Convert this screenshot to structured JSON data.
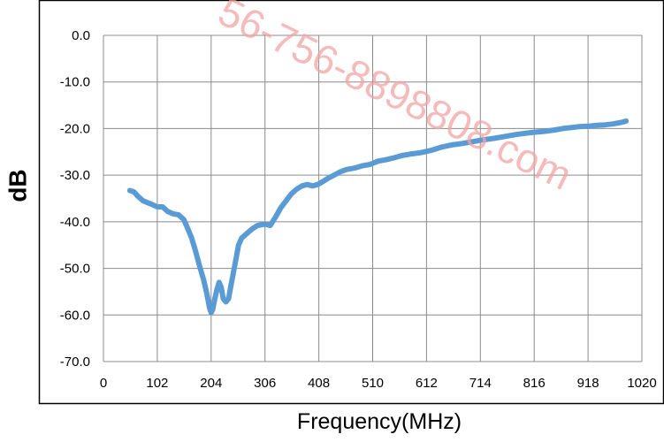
{
  "watermark": "56-756-8898808.com",
  "chart_data": {
    "type": "line",
    "title": "",
    "xlabel": "Frequency(MHz)",
    "ylabel": "dB",
    "xlim": [
      0,
      1020
    ],
    "ylim": [
      -70,
      0
    ],
    "x_ticks": [
      "0",
      "102",
      "204",
      "306",
      "408",
      "510",
      "612",
      "714",
      "816",
      "918",
      "1020"
    ],
    "y_ticks": [
      "0.0",
      "-10.0",
      "-20.0",
      "-30.0",
      "-40.0",
      "-50.0",
      "-60.0",
      "-70.0"
    ],
    "grid": true,
    "legend": "none",
    "series": [
      {
        "color": "#5b9bd5",
        "points": [
          [
            50,
            -33.3
          ],
          [
            58,
            -33.6
          ],
          [
            65,
            -34.5
          ],
          [
            75,
            -35.5
          ],
          [
            90,
            -36.2
          ],
          [
            102,
            -36.8
          ],
          [
            112,
            -36.8
          ],
          [
            122,
            -37.8
          ],
          [
            132,
            -38.3
          ],
          [
            142,
            -38.5
          ],
          [
            152,
            -39.5
          ],
          [
            160,
            -41.5
          ],
          [
            167,
            -43.5
          ],
          [
            175,
            -46.5
          ],
          [
            182,
            -49.5
          ],
          [
            190,
            -52.5
          ],
          [
            196,
            -55.5
          ],
          [
            201,
            -58.5
          ],
          [
            204,
            -59.5
          ],
          [
            207,
            -58.8
          ],
          [
            211,
            -56.5
          ],
          [
            215,
            -54.5
          ],
          [
            219,
            -53.0
          ],
          [
            223,
            -54.0
          ],
          [
            227,
            -56.5
          ],
          [
            232,
            -57.2
          ],
          [
            237,
            -56.5
          ],
          [
            241,
            -54.0
          ],
          [
            246,
            -51.0
          ],
          [
            251,
            -48.0
          ],
          [
            256,
            -45.0
          ],
          [
            262,
            -43.5
          ],
          [
            272,
            -42.5
          ],
          [
            282,
            -41.5
          ],
          [
            292,
            -40.8
          ],
          [
            306,
            -40.5
          ],
          [
            316,
            -40.8
          ],
          [
            326,
            -39.0
          ],
          [
            336,
            -37.0
          ],
          [
            346,
            -35.5
          ],
          [
            356,
            -34.0
          ],
          [
            366,
            -33.0
          ],
          [
            376,
            -32.3
          ],
          [
            386,
            -32.0
          ],
          [
            396,
            -32.3
          ],
          [
            406,
            -32.0
          ],
          [
            414,
            -31.5
          ],
          [
            425,
            -30.7
          ],
          [
            437,
            -30.0
          ],
          [
            448,
            -29.3
          ],
          [
            460,
            -28.8
          ],
          [
            475,
            -28.5
          ],
          [
            490,
            -28.0
          ],
          [
            505,
            -27.7
          ],
          [
            520,
            -27.0
          ],
          [
            535,
            -26.7
          ],
          [
            550,
            -26.3
          ],
          [
            565,
            -25.8
          ],
          [
            580,
            -25.5
          ],
          [
            600,
            -25.2
          ],
          [
            620,
            -24.7
          ],
          [
            640,
            -24.0
          ],
          [
            660,
            -23.5
          ],
          [
            680,
            -23.2
          ],
          [
            700,
            -22.8
          ],
          [
            720,
            -22.4
          ],
          [
            740,
            -22.1
          ],
          [
            760,
            -21.7
          ],
          [
            780,
            -21.3
          ],
          [
            800,
            -21.0
          ],
          [
            816,
            -20.8
          ],
          [
            835,
            -20.6
          ],
          [
            855,
            -20.3
          ],
          [
            870,
            -20.0
          ],
          [
            885,
            -19.8
          ],
          [
            900,
            -19.6
          ],
          [
            918,
            -19.5
          ],
          [
            935,
            -19.3
          ],
          [
            950,
            -19.2
          ],
          [
            965,
            -19.0
          ],
          [
            980,
            -18.7
          ],
          [
            990,
            -18.4
          ]
        ]
      }
    ]
  }
}
